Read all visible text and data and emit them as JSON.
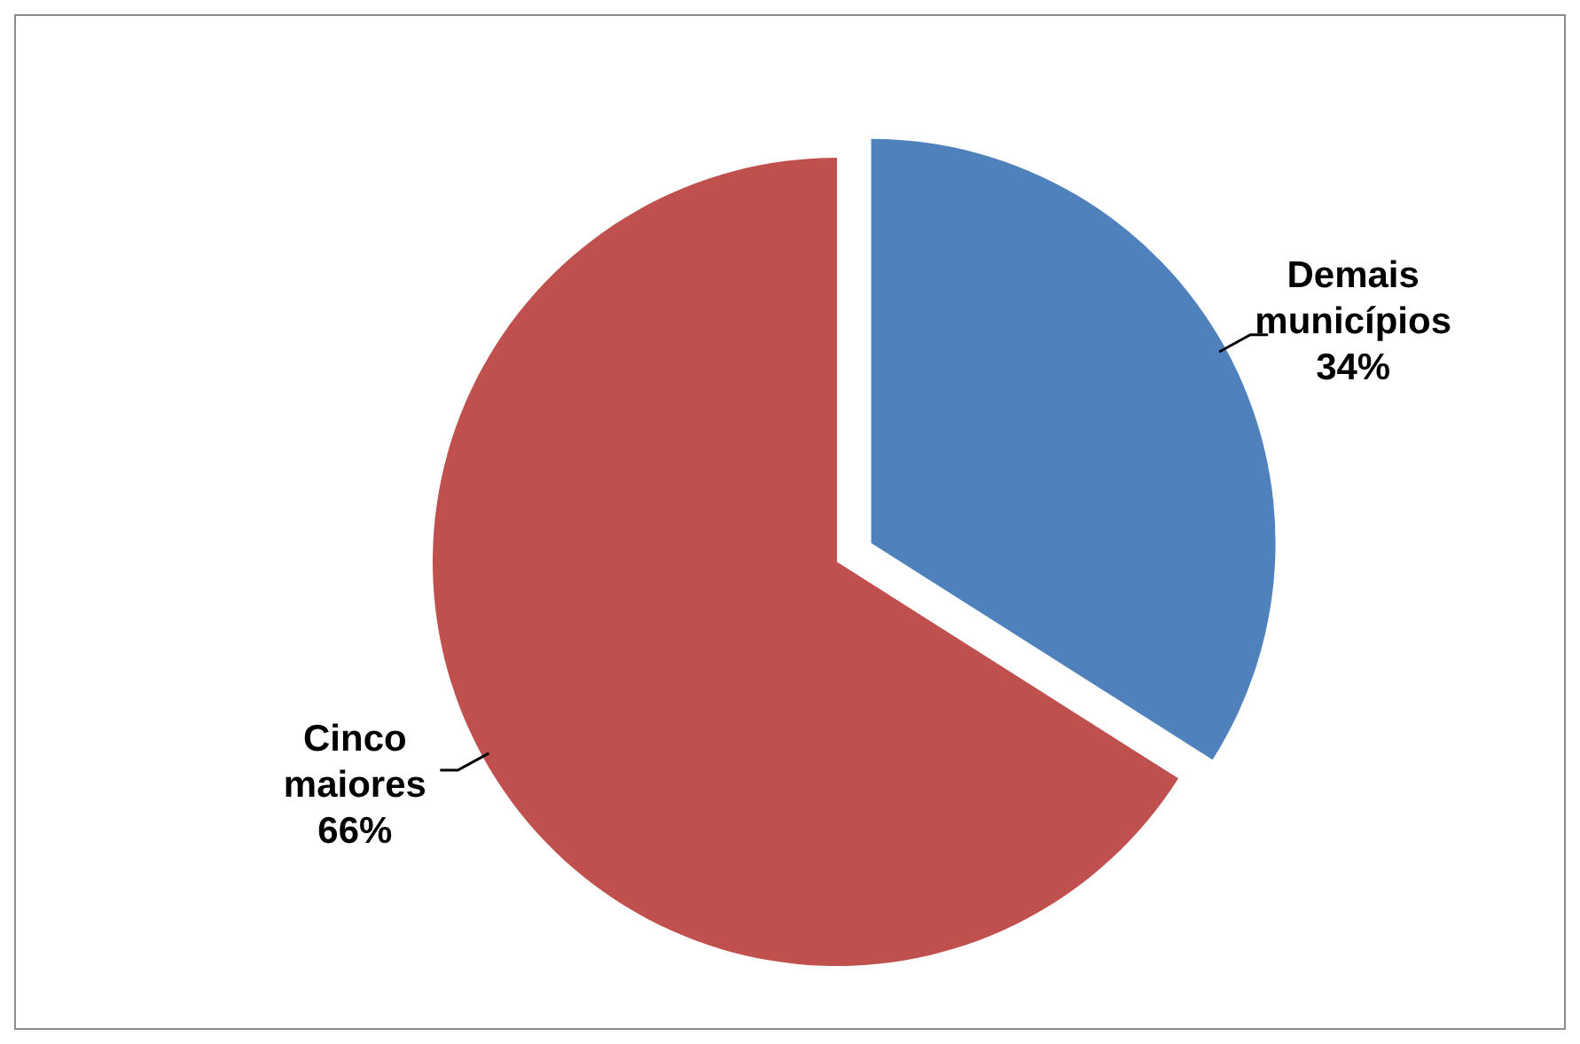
{
  "chart_data": {
    "type": "pie",
    "categories": [
      "Demais municípios",
      "Cinco maiores"
    ],
    "values": [
      34,
      66
    ],
    "colors": [
      "#4f81bd",
      "#c0504d"
    ],
    "value_labels": [
      "34%",
      "66%"
    ],
    "legend": false
  }
}
